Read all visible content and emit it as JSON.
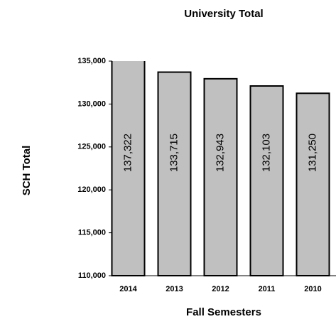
{
  "chart_data": {
    "type": "bar",
    "title": "University Total",
    "x_label": "Fall Semesters",
    "y_label": "SCH Total",
    "categories": [
      "2014",
      "2013",
      "2012",
      "2011",
      "2010"
    ],
    "values": [
      137322,
      133715,
      132943,
      132103,
      131250
    ],
    "value_labels": [
      "137,322",
      "133,715",
      "132,943",
      "132,103",
      "131,250"
    ],
    "color": "#c0c0c0",
    "ylim": [
      110000,
      135000
    ],
    "yticks": [
      {
        "value": 110000,
        "label": "110,000"
      },
      {
        "value": 115000,
        "label": "115,000"
      },
      {
        "value": 120000,
        "label": "120,000"
      },
      {
        "value": 125000,
        "label": "125,000"
      },
      {
        "value": 130000,
        "label": "130,000"
      },
      {
        "value": 135000,
        "label": "135,000"
      }
    ],
    "grid": false
  }
}
